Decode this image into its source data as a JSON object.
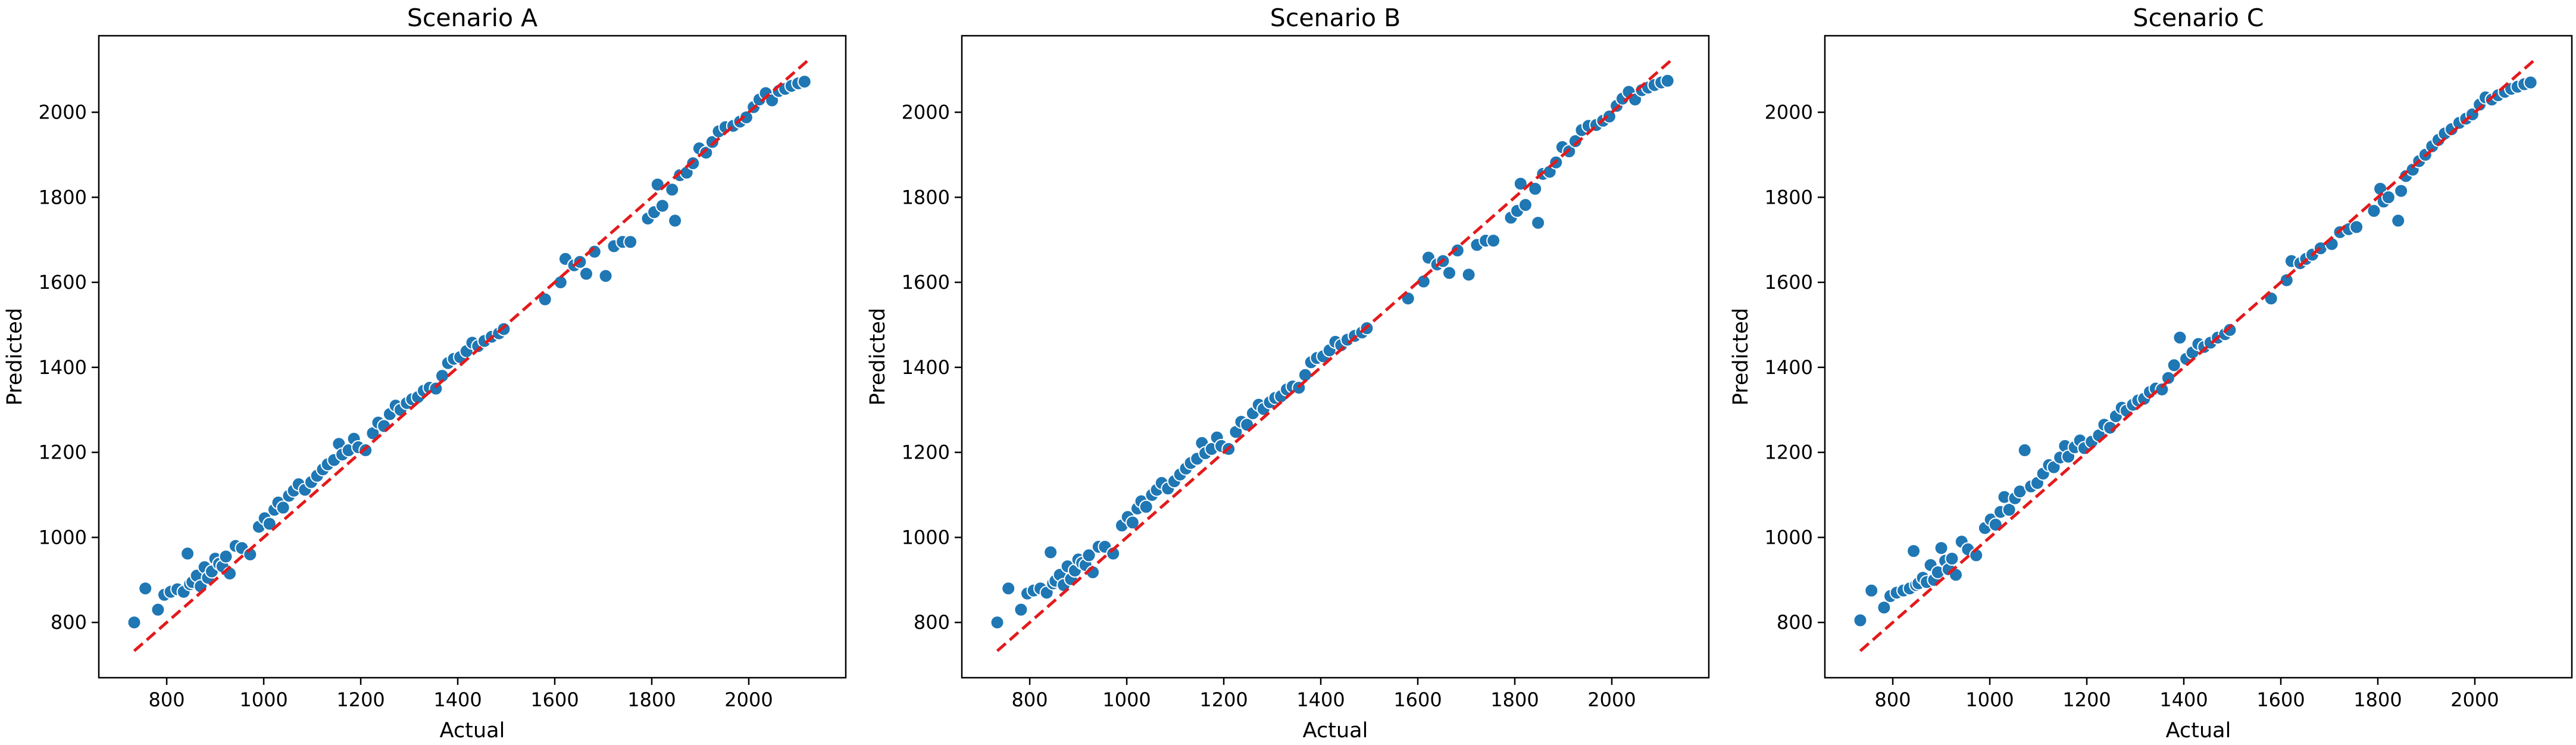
{
  "chart_data": [
    {
      "type": "scatter",
      "title": "Scenario A",
      "xlabel": "Actual",
      "ylabel": "Predicted",
      "xlim": [
        660,
        2200
      ],
      "ylim": [
        670,
        2180
      ],
      "xticks": [
        800,
        1000,
        1200,
        1400,
        1600,
        1800,
        2000
      ],
      "yticks": [
        800,
        1000,
        1200,
        1400,
        1600,
        1800,
        2000
      ],
      "reference_line": {
        "from": [
          733,
          733
        ],
        "to": [
          2123,
          2123
        ],
        "style": "dashed",
        "color": "#e31a1c"
      },
      "point_color": "#1f77b4",
      "grid": false,
      "points": [
        [
          733,
          800
        ],
        [
          756,
          880
        ],
        [
          782,
          830
        ],
        [
          795,
          865
        ],
        [
          808,
          872
        ],
        [
          822,
          878
        ],
        [
          835,
          872
        ],
        [
          843,
          962
        ],
        [
          848,
          890
        ],
        [
          853,
          895
        ],
        [
          862,
          910
        ],
        [
          870,
          885
        ],
        [
          878,
          930
        ],
        [
          885,
          905
        ],
        [
          893,
          920
        ],
        [
          900,
          950
        ],
        [
          908,
          938
        ],
        [
          915,
          932
        ],
        [
          922,
          955
        ],
        [
          930,
          915
        ],
        [
          942,
          980
        ],
        [
          955,
          975
        ],
        [
          972,
          960
        ],
        [
          990,
          1025
        ],
        [
          1002,
          1045
        ],
        [
          1012,
          1032
        ],
        [
          1022,
          1065
        ],
        [
          1030,
          1082
        ],
        [
          1040,
          1070
        ],
        [
          1052,
          1098
        ],
        [
          1062,
          1110
        ],
        [
          1072,
          1125
        ],
        [
          1085,
          1112
        ],
        [
          1098,
          1130
        ],
        [
          1110,
          1145
        ],
        [
          1122,
          1160
        ],
        [
          1132,
          1172
        ],
        [
          1145,
          1182
        ],
        [
          1155,
          1220
        ],
        [
          1162,
          1195
        ],
        [
          1175,
          1205
        ],
        [
          1186,
          1232
        ],
        [
          1195,
          1212
        ],
        [
          1210,
          1205
        ],
        [
          1225,
          1245
        ],
        [
          1236,
          1270
        ],
        [
          1248,
          1262
        ],
        [
          1260,
          1290
        ],
        [
          1272,
          1310
        ],
        [
          1282,
          1300
        ],
        [
          1295,
          1316
        ],
        [
          1306,
          1325
        ],
        [
          1318,
          1330
        ],
        [
          1330,
          1345
        ],
        [
          1342,
          1352
        ],
        [
          1355,
          1350
        ],
        [
          1368,
          1380
        ],
        [
          1380,
          1410
        ],
        [
          1392,
          1420
        ],
        [
          1405,
          1424
        ],
        [
          1418,
          1438
        ],
        [
          1430,
          1458
        ],
        [
          1442,
          1450
        ],
        [
          1455,
          1462
        ],
        [
          1470,
          1472
        ],
        [
          1485,
          1480
        ],
        [
          1495,
          1490
        ],
        [
          1580,
          1560
        ],
        [
          1612,
          1600
        ],
        [
          1622,
          1655
        ],
        [
          1640,
          1640
        ],
        [
          1652,
          1648
        ],
        [
          1665,
          1620
        ],
        [
          1682,
          1672
        ],
        [
          1705,
          1615
        ],
        [
          1722,
          1685
        ],
        [
          1740,
          1695
        ],
        [
          1756,
          1695
        ],
        [
          1792,
          1750
        ],
        [
          1805,
          1765
        ],
        [
          1812,
          1830
        ],
        [
          1822,
          1780
        ],
        [
          1842,
          1818
        ],
        [
          1848,
          1745
        ],
        [
          1858,
          1852
        ],
        [
          1872,
          1858
        ],
        [
          1885,
          1880
        ],
        [
          1898,
          1915
        ],
        [
          1912,
          1905
        ],
        [
          1925,
          1930
        ],
        [
          1938,
          1955
        ],
        [
          1952,
          1965
        ],
        [
          1968,
          1968
        ],
        [
          1982,
          1978
        ],
        [
          1995,
          1988
        ],
        [
          2010,
          2012
        ],
        [
          2022,
          2030
        ],
        [
          2035,
          2045
        ],
        [
          2048,
          2028
        ],
        [
          2062,
          2050
        ],
        [
          2075,
          2055
        ],
        [
          2088,
          2062
        ],
        [
          2102,
          2068
        ],
        [
          2115,
          2072
        ]
      ]
    },
    {
      "type": "scatter",
      "title": "Scenario B",
      "xlabel": "Actual",
      "ylabel": "Predicted",
      "xlim": [
        660,
        2200
      ],
      "ylim": [
        670,
        2180
      ],
      "xticks": [
        800,
        1000,
        1200,
        1400,
        1600,
        1800,
        2000
      ],
      "yticks": [
        800,
        1000,
        1200,
        1400,
        1600,
        1800,
        2000
      ],
      "reference_line": {
        "from": [
          733,
          733
        ],
        "to": [
          2123,
          2123
        ],
        "style": "dashed",
        "color": "#e31a1c"
      },
      "point_color": "#1f77b4",
      "grid": false,
      "points": [
        [
          733,
          800
        ],
        [
          756,
          880
        ],
        [
          782,
          830
        ],
        [
          795,
          868
        ],
        [
          808,
          875
        ],
        [
          822,
          880
        ],
        [
          835,
          870
        ],
        [
          843,
          965
        ],
        [
          848,
          892
        ],
        [
          853,
          898
        ],
        [
          862,
          912
        ],
        [
          870,
          888
        ],
        [
          878,
          932
        ],
        [
          885,
          902
        ],
        [
          893,
          922
        ],
        [
          900,
          948
        ],
        [
          908,
          940
        ],
        [
          915,
          935
        ],
        [
          922,
          958
        ],
        [
          930,
          918
        ],
        [
          942,
          978
        ],
        [
          955,
          978
        ],
        [
          972,
          962
        ],
        [
          990,
          1028
        ],
        [
          1002,
          1048
        ],
        [
          1012,
          1035
        ],
        [
          1022,
          1068
        ],
        [
          1030,
          1085
        ],
        [
          1040,
          1072
        ],
        [
          1052,
          1100
        ],
        [
          1062,
          1112
        ],
        [
          1072,
          1128
        ],
        [
          1085,
          1115
        ],
        [
          1098,
          1132
        ],
        [
          1110,
          1148
        ],
        [
          1122,
          1162
        ],
        [
          1132,
          1175
        ],
        [
          1145,
          1185
        ],
        [
          1155,
          1222
        ],
        [
          1162,
          1198
        ],
        [
          1175,
          1208
        ],
        [
          1186,
          1235
        ],
        [
          1195,
          1215
        ],
        [
          1210,
          1208
        ],
        [
          1225,
          1248
        ],
        [
          1236,
          1272
        ],
        [
          1248,
          1265
        ],
        [
          1260,
          1292
        ],
        [
          1272,
          1312
        ],
        [
          1282,
          1302
        ],
        [
          1295,
          1318
        ],
        [
          1306,
          1328
        ],
        [
          1318,
          1332
        ],
        [
          1330,
          1348
        ],
        [
          1342,
          1355
        ],
        [
          1355,
          1352
        ],
        [
          1368,
          1382
        ],
        [
          1380,
          1412
        ],
        [
          1392,
          1422
        ],
        [
          1405,
          1426
        ],
        [
          1418,
          1440
        ],
        [
          1430,
          1460
        ],
        [
          1442,
          1452
        ],
        [
          1455,
          1465
        ],
        [
          1470,
          1474
        ],
        [
          1485,
          1482
        ],
        [
          1495,
          1492
        ],
        [
          1580,
          1562
        ],
        [
          1612,
          1602
        ],
        [
          1622,
          1658
        ],
        [
          1640,
          1642
        ],
        [
          1652,
          1650
        ],
        [
          1665,
          1622
        ],
        [
          1682,
          1675
        ],
        [
          1705,
          1618
        ],
        [
          1722,
          1688
        ],
        [
          1740,
          1698
        ],
        [
          1756,
          1698
        ],
        [
          1792,
          1752
        ],
        [
          1805,
          1768
        ],
        [
          1812,
          1832
        ],
        [
          1822,
          1782
        ],
        [
          1842,
          1820
        ],
        [
          1848,
          1740
        ],
        [
          1858,
          1855
        ],
        [
          1872,
          1860
        ],
        [
          1885,
          1882
        ],
        [
          1898,
          1918
        ],
        [
          1912,
          1908
        ],
        [
          1925,
          1932
        ],
        [
          1938,
          1958
        ],
        [
          1952,
          1968
        ],
        [
          1968,
          1970
        ],
        [
          1982,
          1980
        ],
        [
          1995,
          1990
        ],
        [
          2010,
          2015
        ],
        [
          2022,
          2032
        ],
        [
          2035,
          2048
        ],
        [
          2048,
          2030
        ],
        [
          2062,
          2052
        ],
        [
          2075,
          2058
        ],
        [
          2088,
          2064
        ],
        [
          2102,
          2070
        ],
        [
          2115,
          2074
        ]
      ]
    },
    {
      "type": "scatter",
      "title": "Scenario C",
      "xlabel": "Actual",
      "ylabel": "Predicted",
      "xlim": [
        660,
        2200
      ],
      "ylim": [
        670,
        2180
      ],
      "xticks": [
        800,
        1000,
        1200,
        1400,
        1600,
        1800,
        2000
      ],
      "yticks": [
        800,
        1000,
        1200,
        1400,
        1600,
        1800,
        2000
      ],
      "reference_line": {
        "from": [
          733,
          733
        ],
        "to": [
          2123,
          2123
        ],
        "style": "dashed",
        "color": "#e31a1c"
      },
      "point_color": "#1f77b4",
      "grid": false,
      "points": [
        [
          733,
          805
        ],
        [
          756,
          875
        ],
        [
          782,
          835
        ],
        [
          795,
          862
        ],
        [
          808,
          870
        ],
        [
          822,
          875
        ],
        [
          835,
          880
        ],
        [
          843,
          968
        ],
        [
          848,
          888
        ],
        [
          853,
          892
        ],
        [
          862,
          905
        ],
        [
          870,
          895
        ],
        [
          878,
          935
        ],
        [
          885,
          900
        ],
        [
          893,
          918
        ],
        [
          900,
          975
        ],
        [
          908,
          945
        ],
        [
          915,
          925
        ],
        [
          922,
          950
        ],
        [
          930,
          912
        ],
        [
          942,
          990
        ],
        [
          955,
          972
        ],
        [
          972,
          958
        ],
        [
          990,
          1022
        ],
        [
          1002,
          1042
        ],
        [
          1012,
          1030
        ],
        [
          1022,
          1060
        ],
        [
          1030,
          1095
        ],
        [
          1040,
          1065
        ],
        [
          1052,
          1092
        ],
        [
          1062,
          1108
        ],
        [
          1072,
          1205
        ],
        [
          1085,
          1120
        ],
        [
          1098,
          1128
        ],
        [
          1110,
          1150
        ],
        [
          1122,
          1170
        ],
        [
          1132,
          1165
        ],
        [
          1145,
          1188
        ],
        [
          1155,
          1215
        ],
        [
          1162,
          1190
        ],
        [
          1175,
          1212
        ],
        [
          1186,
          1228
        ],
        [
          1195,
          1210
        ],
        [
          1210,
          1225
        ],
        [
          1225,
          1240
        ],
        [
          1236,
          1265
        ],
        [
          1248,
          1258
        ],
        [
          1260,
          1285
        ],
        [
          1272,
          1305
        ],
        [
          1282,
          1298
        ],
        [
          1295,
          1312
        ],
        [
          1306,
          1322
        ],
        [
          1318,
          1326
        ],
        [
          1330,
          1342
        ],
        [
          1342,
          1350
        ],
        [
          1355,
          1348
        ],
        [
          1368,
          1375
        ],
        [
          1380,
          1405
        ],
        [
          1392,
          1470
        ],
        [
          1405,
          1420
        ],
        [
          1418,
          1435
        ],
        [
          1430,
          1455
        ],
        [
          1442,
          1448
        ],
        [
          1455,
          1458
        ],
        [
          1470,
          1470
        ],
        [
          1485,
          1478
        ],
        [
          1495,
          1488
        ],
        [
          1580,
          1562
        ],
        [
          1612,
          1605
        ],
        [
          1622,
          1650
        ],
        [
          1640,
          1645
        ],
        [
          1652,
          1655
        ],
        [
          1665,
          1665
        ],
        [
          1682,
          1680
        ],
        [
          1705,
          1690
        ],
        [
          1722,
          1718
        ],
        [
          1740,
          1725
        ],
        [
          1756,
          1730
        ],
        [
          1792,
          1768
        ],
        [
          1805,
          1820
        ],
        [
          1812,
          1790
        ],
        [
          1822,
          1800
        ],
        [
          1842,
          1745
        ],
        [
          1848,
          1815
        ],
        [
          1858,
          1850
        ],
        [
          1872,
          1865
        ],
        [
          1885,
          1885
        ],
        [
          1898,
          1900
        ],
        [
          1912,
          1920
        ],
        [
          1925,
          1935
        ],
        [
          1938,
          1950
        ],
        [
          1952,
          1960
        ],
        [
          1968,
          1975
        ],
        [
          1982,
          1985
        ],
        [
          1995,
          1995
        ],
        [
          2010,
          2018
        ],
        [
          2022,
          2035
        ],
        [
          2035,
          2030
        ],
        [
          2048,
          2040
        ],
        [
          2062,
          2048
        ],
        [
          2075,
          2055
        ],
        [
          2088,
          2060
        ],
        [
          2102,
          2066
        ],
        [
          2115,
          2070
        ]
      ]
    }
  ]
}
